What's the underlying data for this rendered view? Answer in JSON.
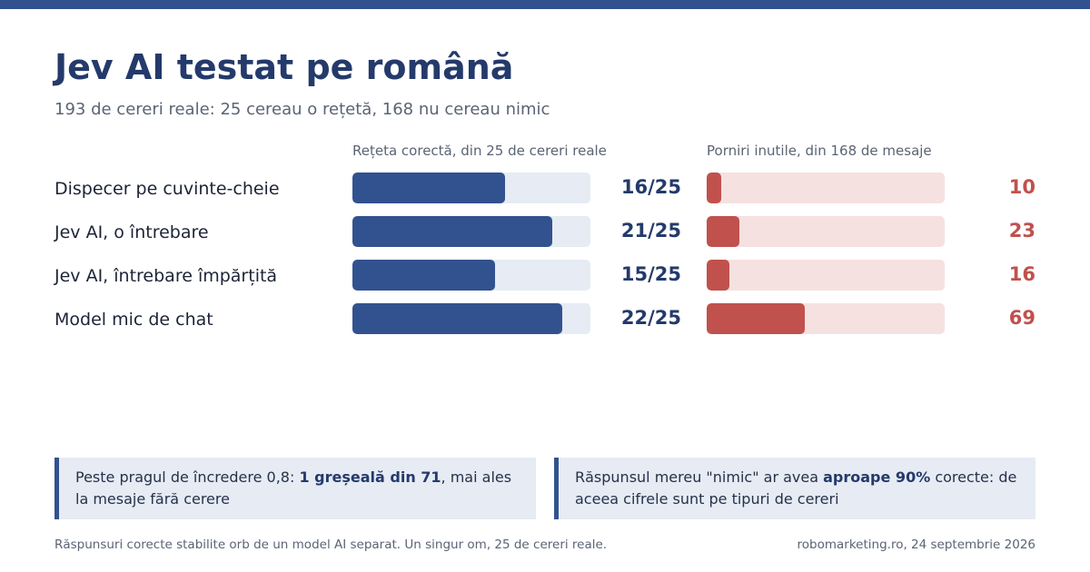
{
  "header": {
    "title": "Jev AI testat pe română",
    "subtitle": "193 de cereri reale: 25 cereau o rețetă, 168 nu cereau nimic"
  },
  "colors": {
    "accent": "#32528f",
    "correct_fill": "#32528f",
    "correct_track": "#e6ebf4",
    "false_fill": "#c0514d",
    "false_track": "#f6e1e1"
  },
  "chart_data": {
    "type": "bar",
    "orientation": "horizontal",
    "categories": [
      "Dispecer pe cuvinte-cheie",
      "Jev AI, o întrebare",
      "Jev AI, întrebare împărțită",
      "Model mic de chat"
    ],
    "panels": [
      {
        "title": "Rețeta corectă, din 25 de cereri reale",
        "values": [
          16,
          21,
          15,
          22
        ],
        "labels": [
          "16/25",
          "21/25",
          "15/25",
          "22/25"
        ],
        "xlim": [
          0,
          25
        ]
      },
      {
        "title": "Porniri inutile, din 168 de mesaje",
        "values": [
          10,
          23,
          16,
          69
        ],
        "labels": [
          "10",
          "23",
          "16",
          "69"
        ],
        "xlim": [
          0,
          168
        ]
      }
    ]
  },
  "notes": [
    {
      "pre": "Peste pragul de încredere 0,8: ",
      "bold": "1 greșeală din 71",
      "post": ", mai ales la mesaje fără cerere"
    },
    {
      "pre": "Răspunsul mereu \"nimic\" ar avea ",
      "bold": "aproape 90%",
      "post": " corecte: de aceea cifrele sunt pe tipuri de cereri"
    }
  ],
  "footer": {
    "left": "Răspunsuri corecte stabilite orb de un model AI separat. Un singur om, 25 de cereri reale.",
    "right": "robomarketing.ro, 24 septembrie 2026"
  }
}
